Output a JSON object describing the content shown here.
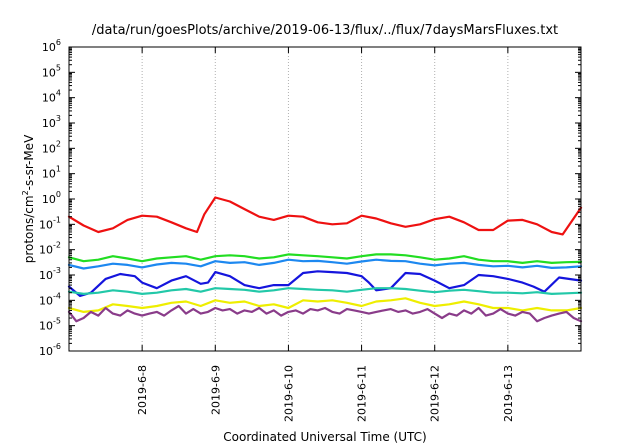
{
  "chart_data": {
    "type": "line",
    "title": "/data/run/goesPlots/archive/2019-06-13/flux/../flux/7daysMarsFluxes.txt",
    "xlabel": "Coordinated Universal Time (UTC)",
    "ylabel_parts": [
      "protons/cm",
      "2",
      "-s-sr-MeV"
    ],
    "y_scale": "log",
    "ylim": [
      1e-06,
      1000000.0
    ],
    "y_tick_exponents": [
      -6,
      -5,
      -4,
      -3,
      -2,
      -1,
      0,
      1,
      2,
      3,
      4,
      5,
      6
    ],
    "y_tick_base": "10",
    "xlim": [
      7.0,
      14.0
    ],
    "x_ticks": [
      {
        "x": 8,
        "label": "2019-6-8"
      },
      {
        "x": 9,
        "label": "2019-6-9"
      },
      {
        "x": 10,
        "label": "2019-6-10"
      },
      {
        "x": 11,
        "label": "2019-6-11"
      },
      {
        "x": 12,
        "label": "2019-6-12"
      },
      {
        "x": 13,
        "label": "2019-6-13"
      }
    ],
    "grid": "dotted vertical at day ticks",
    "legend": "none",
    "series": [
      {
        "color": "#ee1111",
        "x": [
          7.0,
          7.2,
          7.4,
          7.6,
          7.8,
          8.0,
          8.2,
          8.4,
          8.6,
          8.75,
          8.85,
          9.0,
          9.2,
          9.4,
          9.6,
          9.8,
          10.0,
          10.2,
          10.4,
          10.6,
          10.8,
          11.0,
          11.2,
          11.4,
          11.6,
          11.8,
          12.0,
          12.2,
          12.4,
          12.6,
          12.8,
          13.0,
          13.2,
          13.4,
          13.6,
          13.75,
          14.0
        ],
        "y": [
          0.2,
          0.09,
          0.05,
          0.07,
          0.15,
          0.22,
          0.2,
          0.12,
          0.07,
          0.05,
          0.25,
          1.15,
          0.8,
          0.4,
          0.2,
          0.15,
          0.22,
          0.2,
          0.12,
          0.1,
          0.11,
          0.22,
          0.17,
          0.11,
          0.08,
          0.1,
          0.16,
          0.2,
          0.12,
          0.06,
          0.06,
          0.14,
          0.15,
          0.1,
          0.05,
          0.04,
          0.45
        ]
      },
      {
        "color": "#22dd22",
        "x": [
          7.0,
          7.2,
          7.4,
          7.6,
          7.8,
          8.0,
          8.2,
          8.4,
          8.6,
          8.8,
          9.0,
          9.2,
          9.4,
          9.6,
          9.8,
          10.0,
          10.2,
          10.4,
          10.6,
          10.8,
          11.0,
          11.2,
          11.4,
          11.6,
          11.8,
          12.0,
          12.2,
          12.4,
          12.6,
          12.8,
          13.0,
          13.2,
          13.4,
          13.6,
          13.8,
          14.0
        ],
        "y": [
          0.005,
          0.0035,
          0.004,
          0.0055,
          0.0045,
          0.0035,
          0.0045,
          0.005,
          0.0055,
          0.004,
          0.0055,
          0.006,
          0.0055,
          0.0045,
          0.005,
          0.0065,
          0.006,
          0.0055,
          0.005,
          0.0045,
          0.0055,
          0.0065,
          0.0065,
          0.006,
          0.005,
          0.004,
          0.0045,
          0.0055,
          0.004,
          0.0035,
          0.0035,
          0.003,
          0.0035,
          0.003,
          0.0032,
          0.0033
        ]
      },
      {
        "color": "#1d88f0",
        "x": [
          7.0,
          7.2,
          7.4,
          7.6,
          7.8,
          8.0,
          8.2,
          8.4,
          8.6,
          8.8,
          9.0,
          9.2,
          9.4,
          9.6,
          9.8,
          10.0,
          10.2,
          10.4,
          10.6,
          10.8,
          11.0,
          11.2,
          11.4,
          11.6,
          11.8,
          12.0,
          12.2,
          12.4,
          12.6,
          12.8,
          13.0,
          13.2,
          13.4,
          13.6,
          13.8,
          14.0
        ],
        "y": [
          0.0025,
          0.0018,
          0.0022,
          0.0028,
          0.0025,
          0.002,
          0.0026,
          0.003,
          0.0028,
          0.0022,
          0.0035,
          0.003,
          0.0032,
          0.0025,
          0.003,
          0.004,
          0.0035,
          0.0036,
          0.0032,
          0.0028,
          0.0034,
          0.004,
          0.0036,
          0.0035,
          0.0028,
          0.0024,
          0.0028,
          0.003,
          0.0025,
          0.0022,
          0.0023,
          0.002,
          0.0023,
          0.0019,
          0.002,
          0.0022
        ]
      },
      {
        "color": "#1515dd",
        "x": [
          7.0,
          7.15,
          7.3,
          7.5,
          7.7,
          7.9,
          8.0,
          8.2,
          8.4,
          8.6,
          8.8,
          8.9,
          9.0,
          9.2,
          9.4,
          9.6,
          9.8,
          10.0,
          10.2,
          10.4,
          10.6,
          10.8,
          11.0,
          11.1,
          11.2,
          11.4,
          11.6,
          11.8,
          12.0,
          12.2,
          12.4,
          12.6,
          12.8,
          13.0,
          13.2,
          13.35,
          13.5,
          13.7,
          14.0
        ],
        "y": [
          0.00035,
          0.00015,
          0.0002,
          0.0007,
          0.0011,
          0.0009,
          0.0005,
          0.0003,
          0.0006,
          0.0009,
          0.00045,
          0.0005,
          0.0013,
          0.0009,
          0.0004,
          0.0003,
          0.0004,
          0.0004,
          0.0012,
          0.0014,
          0.0013,
          0.0012,
          0.0009,
          0.0005,
          0.00025,
          0.0003,
          0.0012,
          0.0011,
          0.0006,
          0.0003,
          0.0004,
          0.001,
          0.0009,
          0.0007,
          0.0005,
          0.00035,
          0.00022,
          0.0008,
          0.0006
        ]
      },
      {
        "color": "#22c8a8",
        "x": [
          7.0,
          7.2,
          7.4,
          7.6,
          7.8,
          8.0,
          8.2,
          8.4,
          8.6,
          8.8,
          9.0,
          9.2,
          9.4,
          9.6,
          9.8,
          10.0,
          10.2,
          10.4,
          10.6,
          10.8,
          11.0,
          11.2,
          11.4,
          11.6,
          11.8,
          12.0,
          12.2,
          12.4,
          12.6,
          12.8,
          13.0,
          13.2,
          13.4,
          13.6,
          13.8,
          14.0
        ],
        "y": [
          0.00022,
          0.00018,
          0.0002,
          0.00025,
          0.00022,
          0.00018,
          0.0002,
          0.00025,
          0.00028,
          0.00022,
          0.0003,
          0.00028,
          0.00026,
          0.00022,
          0.00025,
          0.0003,
          0.00028,
          0.00026,
          0.00025,
          0.00022,
          0.00026,
          0.0003,
          0.0003,
          0.00028,
          0.00024,
          0.00021,
          0.00024,
          0.00026,
          0.00023,
          0.0002,
          0.0002,
          0.00019,
          0.00021,
          0.00018,
          0.00019,
          0.0002
        ]
      },
      {
        "color": "#eeee00",
        "x": [
          7.0,
          7.2,
          7.4,
          7.6,
          7.8,
          8.0,
          8.2,
          8.4,
          8.6,
          8.8,
          9.0,
          9.2,
          9.4,
          9.6,
          9.8,
          10.0,
          10.2,
          10.4,
          10.6,
          10.8,
          11.0,
          11.2,
          11.4,
          11.6,
          11.8,
          12.0,
          12.2,
          12.4,
          12.6,
          12.8,
          13.0,
          13.2,
          13.4,
          13.6,
          13.8,
          14.0
        ],
        "y": [
          5e-05,
          3.5e-05,
          4e-05,
          7e-05,
          6e-05,
          5e-05,
          6e-05,
          8e-05,
          9e-05,
          6e-05,
          0.0001,
          8e-05,
          9e-05,
          6e-05,
          7e-05,
          5e-05,
          0.0001,
          9e-05,
          0.0001,
          8e-05,
          6e-05,
          9e-05,
          0.0001,
          0.00012,
          8e-05,
          6e-05,
          7e-05,
          9e-05,
          7e-05,
          5e-05,
          5e-05,
          4e-05,
          5e-05,
          4e-05,
          4e-05,
          5e-05
        ]
      },
      {
        "color": "#8a3c8a",
        "x": [
          7.0,
          7.1,
          7.2,
          7.3,
          7.4,
          7.5,
          7.6,
          7.7,
          7.8,
          7.9,
          8.0,
          8.1,
          8.2,
          8.3,
          8.4,
          8.5,
          8.6,
          8.7,
          8.8,
          8.9,
          9.0,
          9.1,
          9.2,
          9.3,
          9.4,
          9.5,
          9.6,
          9.7,
          9.8,
          9.9,
          10.0,
          10.1,
          10.2,
          10.3,
          10.4,
          10.5,
          10.6,
          10.7,
          10.8,
          10.9,
          11.0,
          11.1,
          11.2,
          11.3,
          11.4,
          11.5,
          11.6,
          11.7,
          11.8,
          11.9,
          12.0,
          12.1,
          12.2,
          12.3,
          12.4,
          12.5,
          12.6,
          12.7,
          12.8,
          12.9,
          13.0,
          13.1,
          13.2,
          13.3,
          13.4,
          13.5,
          13.6,
          13.7,
          13.8,
          13.9,
          14.0
        ],
        "y": [
          3.5e-05,
          1.5e-05,
          2e-05,
          3.5e-05,
          2.5e-05,
          5e-05,
          3e-05,
          2.5e-05,
          4e-05,
          3e-05,
          2.5e-05,
          3e-05,
          3.5e-05,
          2.5e-05,
          4e-05,
          6e-05,
          3e-05,
          4.5e-05,
          3e-05,
          3.5e-05,
          5e-05,
          4e-05,
          4.5e-05,
          3e-05,
          4e-05,
          3.5e-05,
          5e-05,
          3e-05,
          4e-05,
          2.5e-05,
          3.5e-05,
          4e-05,
          3e-05,
          4.5e-05,
          4e-05,
          5e-05,
          3.5e-05,
          3e-05,
          4.5e-05,
          4e-05,
          3.5e-05,
          3e-05,
          3.5e-05,
          4e-05,
          4.5e-05,
          3.5e-05,
          4e-05,
          3e-05,
          3.5e-05,
          4.5e-05,
          3e-05,
          2e-05,
          3e-05,
          2.5e-05,
          4e-05,
          3e-05,
          5e-05,
          2.5e-05,
          3e-05,
          4.5e-05,
          3e-05,
          2.5e-05,
          3.5e-05,
          3e-05,
          1.5e-05,
          2e-05,
          2.5e-05,
          3e-05,
          3.5e-05,
          2e-05,
          1.5e-05
        ]
      }
    ]
  }
}
